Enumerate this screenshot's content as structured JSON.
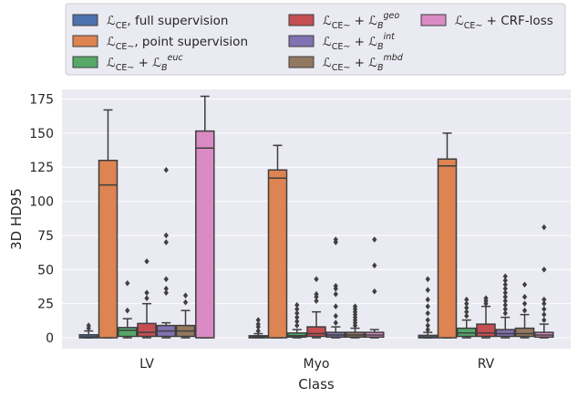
{
  "chart_data": {
    "type": "box",
    "title": "",
    "xlabel": "Class",
    "ylabel": "3D HD95",
    "ylim": [
      -8,
      182
    ],
    "yticks": [
      0,
      25,
      50,
      75,
      100,
      125,
      150,
      175
    ],
    "categories": [
      "LV",
      "Myo",
      "RV"
    ],
    "grid": true,
    "legend_position": "top",
    "series": [
      {
        "name": "L_CE, full supervision",
        "legend": {
          "pre": "ℒ",
          "sub": "CE",
          "rest": ", full supervision"
        },
        "color": "#4c72b0",
        "boxes": [
          {
            "whislo": 0,
            "q1": 0,
            "med": 0.6,
            "q3": 2.2,
            "whishi": 5,
            "fliers": [
              7,
              9
            ]
          },
          {
            "whislo": 0,
            "q1": 0,
            "med": 0.5,
            "q3": 1.5,
            "whishi": 3,
            "fliers": [
              5,
              8,
              10,
              13
            ]
          },
          {
            "whislo": 0,
            "q1": 0,
            "med": 0.5,
            "q3": 1.8,
            "whishi": 4,
            "fliers": [
              6,
              9,
              13,
              18,
              23,
              28,
              35,
              43
            ]
          }
        ]
      },
      {
        "name": "L_CE~, point supervision",
        "legend": {
          "pre": "ℒ",
          "sub": "CE~",
          "rest": ", point supervision"
        },
        "color": "#dd8452",
        "boxes": [
          {
            "whislo": 0,
            "q1": 0,
            "med": 112,
            "q3": 130,
            "whishi": 167,
            "fliers": []
          },
          {
            "whislo": 0,
            "q1": 0,
            "med": 117,
            "q3": 123,
            "whishi": 141,
            "fliers": []
          },
          {
            "whislo": 0,
            "q1": 0,
            "med": 126,
            "q3": 131,
            "whishi": 150,
            "fliers": []
          }
        ]
      },
      {
        "name": "L_CE~ + L_B^euc",
        "legend": {
          "pre": "ℒ",
          "sub": "CE~",
          "rest": " + ℒ",
          "sub2": "B",
          "sup": "euc"
        },
        "color": "#55a868",
        "boxes": [
          {
            "whislo": 0,
            "q1": 1,
            "med": 5.5,
            "q3": 7.5,
            "whishi": 14,
            "fliers": [
              20,
              40
            ]
          },
          {
            "whislo": 0,
            "q1": 0.5,
            "med": 1.5,
            "q3": 3.5,
            "whishi": 6,
            "fliers": [
              9,
              12,
              15,
              18,
              21,
              24
            ]
          },
          {
            "whislo": 0,
            "q1": 1,
            "med": 3.5,
            "q3": 7,
            "whishi": 13,
            "fliers": [
              16,
              19,
              22,
              25,
              28
            ]
          }
        ]
      },
      {
        "name": "L_CE~ + L_B^geo",
        "legend": {
          "pre": "ℒ",
          "sub": "CE~",
          "rest": " + ℒ",
          "sub2": "B",
          "sup": "geo"
        },
        "color": "#c44e52",
        "boxes": [
          {
            "whislo": 0,
            "q1": 1,
            "med": 4,
            "q3": 10.5,
            "whishi": 25,
            "fliers": [
              29,
              33,
              56
            ]
          },
          {
            "whislo": 0,
            "q1": 1,
            "med": 3,
            "q3": 8,
            "whishi": 19,
            "fliers": [
              27,
              30,
              32,
              43
            ]
          },
          {
            "whislo": 0,
            "q1": 1,
            "med": 3.5,
            "q3": 10,
            "whishi": 23,
            "fliers": [
              25,
              27,
              29
            ]
          }
        ]
      },
      {
        "name": "L_CE~ + L_B^int",
        "legend": {
          "pre": "ℒ",
          "sub": "CE~",
          "rest": " + ℒ",
          "sub2": "B",
          "sup": "int"
        },
        "color": "#8172b3",
        "boxes": [
          {
            "whislo": 0,
            "q1": 1,
            "med": 5,
            "q3": 9,
            "whishi": 11,
            "fliers": [
              33,
              36,
              43,
              70,
              75,
              123
            ]
          },
          {
            "whislo": 0,
            "q1": 0.5,
            "med": 2,
            "q3": 4,
            "whishi": 8,
            "fliers": [
              11,
              16,
              23,
              32,
              36,
              38,
              70,
              72
            ]
          },
          {
            "whislo": 0,
            "q1": 1,
            "med": 3,
            "q3": 6,
            "whishi": 15,
            "fliers": [
              18,
              21,
              24,
              27,
              30,
              33,
              36,
              39,
              42,
              45
            ]
          }
        ]
      },
      {
        "name": "L_CE~ + L_B^mbd",
        "legend": {
          "pre": "ℒ",
          "sub": "CE~",
          "rest": " + ℒ",
          "sub2": "B",
          "sup": "mbd"
        },
        "color": "#937860",
        "boxes": [
          {
            "whislo": 0,
            "q1": 1,
            "med": 5,
            "q3": 9,
            "whishi": 20,
            "fliers": [
              26,
              31
            ]
          },
          {
            "whislo": 0,
            "q1": 0.5,
            "med": 2,
            "q3": 4,
            "whishi": 7,
            "fliers": [
              9,
              11,
              13,
              15,
              17,
              19,
              21,
              23
            ]
          },
          {
            "whislo": 0,
            "q1": 1,
            "med": 3,
            "q3": 7,
            "whishi": 17,
            "fliers": [
              20,
              25,
              30,
              39
            ]
          }
        ]
      },
      {
        "name": "L_CE~ + CRF-loss",
        "legend": {
          "pre": "ℒ",
          "sub": "CE~",
          "rest": " + CRF-loss"
        },
        "color": "#da8bc3",
        "boxes": [
          {
            "whislo": 0,
            "q1": 0,
            "med": 139,
            "q3": 151.5,
            "whishi": 177,
            "fliers": []
          },
          {
            "whislo": 0,
            "q1": 0.5,
            "med": 2,
            "q3": 4,
            "whishi": 6,
            "fliers": [
              34,
              53,
              72
            ]
          },
          {
            "whislo": 0,
            "q1": 0.5,
            "med": 2,
            "q3": 4,
            "whishi": 10,
            "fliers": [
              13,
              17,
              21,
              25,
              28,
              50,
              81
            ]
          }
        ]
      }
    ]
  }
}
